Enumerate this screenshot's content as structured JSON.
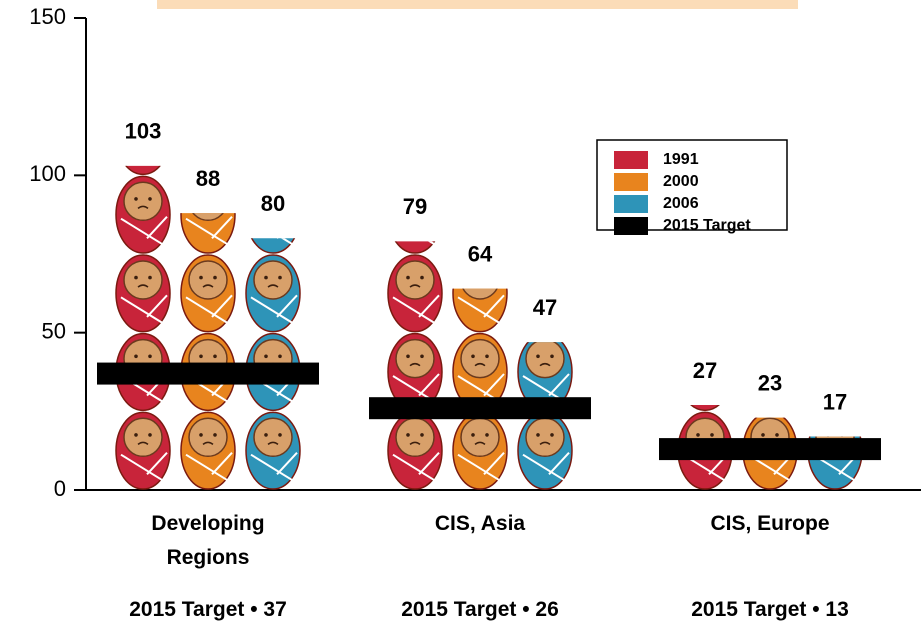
{
  "chart_data": {
    "type": "pictogram_bar",
    "categories": [
      "Developing Regions",
      "CIS, Asia",
      "CIS, Europe"
    ],
    "series": [
      {
        "name": "1991",
        "color": "#c8243a",
        "values": [
          103,
          79,
          27
        ]
      },
      {
        "name": "2000",
        "color": "#e8841e",
        "values": [
          88,
          64,
          23
        ]
      },
      {
        "name": "2006",
        "color": "#2e94b8",
        "values": [
          80,
          47,
          17
        ]
      }
    ],
    "target": {
      "name": "2015 Target",
      "color": "#000000",
      "values": [
        37,
        26,
        13
      ],
      "value_labels": [
        "2015 Target • 37",
        "2015 Target • 26",
        "2015 Target • 13"
      ]
    },
    "ylim": [
      0,
      150
    ],
    "yticks": [
      0,
      50,
      100,
      150
    ],
    "legend": "upper right"
  }
}
